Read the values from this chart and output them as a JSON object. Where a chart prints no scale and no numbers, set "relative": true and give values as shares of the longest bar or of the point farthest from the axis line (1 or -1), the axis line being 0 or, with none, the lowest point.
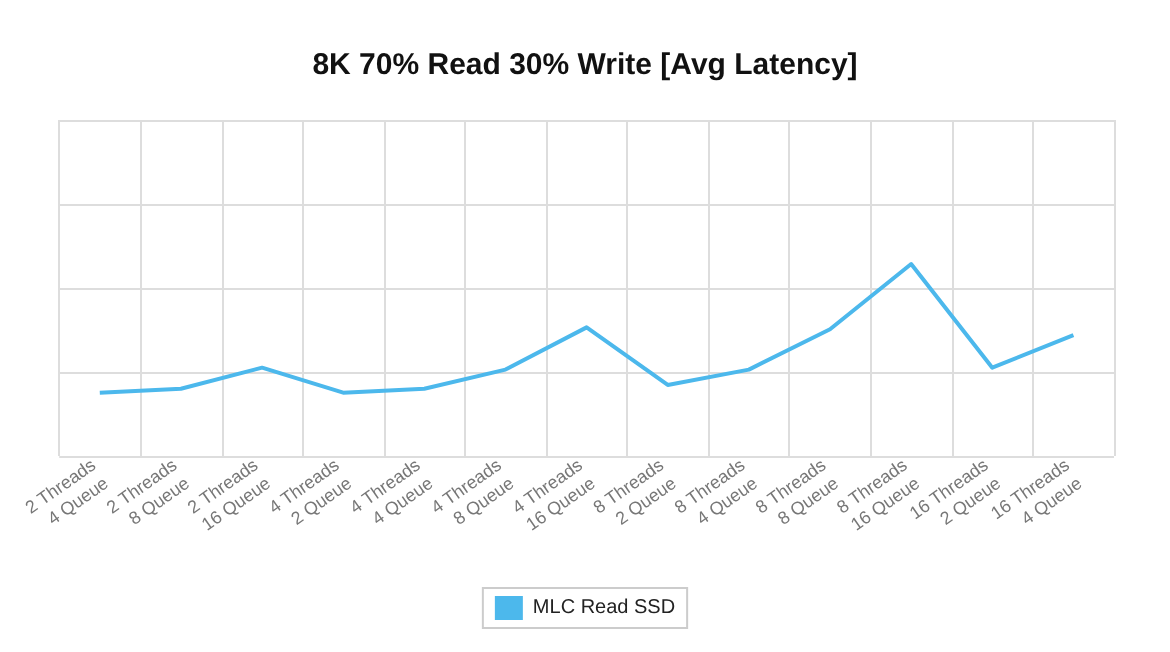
{
  "chart_data": {
    "type": "line",
    "title": "8K 70% Read 30% Write [Avg Latency]",
    "categories": [
      "2 Threads\n4 Queue",
      "2 Threads\n8 Queue",
      "2 Threads\n16 Queue",
      "4 Threads\n2 Queue",
      "4 Threads\n4 Queue",
      "4 Threads\n8 Queue",
      "4 Threads\n16 Queue",
      "8 Threads\n2 Queue",
      "8 Threads\n4 Queue",
      "8 Threads\n8 Queue",
      "8 Threads\n16 Queue",
      "16 Threads\n2 Queue",
      "16 Threads\n4 Queue"
    ],
    "relative": true,
    "series": [
      {
        "name": "MLC Read SSD",
        "color": "#4cb8ec",
        "values": [
          0.33,
          0.35,
          0.46,
          0.33,
          0.35,
          0.45,
          0.67,
          0.37,
          0.45,
          0.66,
          1,
          0.46,
          0.63
        ]
      }
    ],
    "grid": true,
    "legend": "bottom",
    "marker": "none"
  }
}
